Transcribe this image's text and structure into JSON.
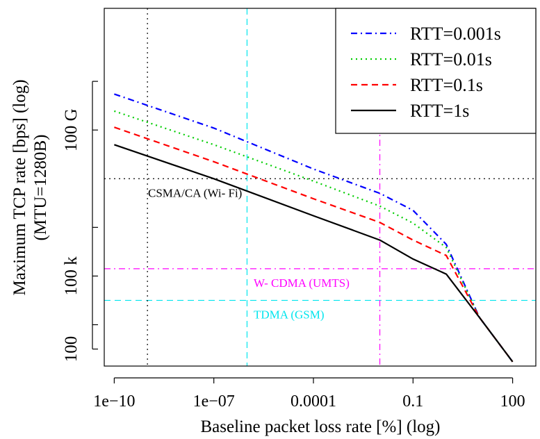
{
  "chart_data": {
    "type": "line",
    "xlabel": "Baseline packet loss rate [%] (log)",
    "ylabel_lines": [
      "Maximum TCP rate [bps] (log)",
      "(MTU=1280B)"
    ],
    "x_scale": "log10",
    "y_scale": "log10",
    "xlim": [
      5e-11,
      500
    ],
    "ylim": [
      20,
      1e+16
    ],
    "x_ticks": [
      {
        "value": 1e-10,
        "label": "1e−10"
      },
      {
        "value": 1e-07,
        "label": "1e−07"
      },
      {
        "value": 0.0001,
        "label": "0.0001"
      },
      {
        "value": 0.1,
        "label": "0.1"
      },
      {
        "value": 100,
        "label": "100"
      }
    ],
    "y_ticks": [
      {
        "value": 100,
        "label": "100"
      },
      {
        "value": 1000,
        "label": ""
      },
      {
        "value": 100000,
        "label": "100 k"
      },
      {
        "value": 10000000,
        "label": ""
      },
      {
        "value": 100000000000,
        "label": "100 G"
      },
      {
        "value": 10000000000000,
        "label": ""
      }
    ],
    "series": [
      {
        "name": "RTT=0.001s",
        "color": "#0000ff",
        "dash": "dashdot",
        "x": [
          1e-10,
          1e-07,
          0.0001,
          0.01,
          0.1,
          1,
          10,
          100
        ],
        "y": [
          3000000000000.0,
          120000000000.0,
          2500000000.0,
          250000000.0,
          50000000.0,
          2000000.0,
          2000,
          30
        ]
      },
      {
        "name": "RTT=0.01s",
        "color": "#00cd00",
        "dash": "dotted",
        "x": [
          1e-10,
          1e-07,
          0.0001,
          0.01,
          0.1,
          1,
          10,
          100
        ],
        "y": [
          600000000000.0,
          25000000000.0,
          800000000.0,
          75000000.0,
          15000000.0,
          1500000.0,
          2000,
          30
        ]
      },
      {
        "name": "RTT=0.1s",
        "color": "#ff0000",
        "dash": "dashed",
        "x": [
          1e-10,
          1e-07,
          0.0001,
          0.01,
          0.1,
          1,
          10,
          100
        ],
        "y": [
          130000000000.0,
          5000000000.0,
          150000000.0,
          16000000.0,
          3000000.0,
          700000.0,
          2000,
          30
        ]
      },
      {
        "name": "RTT=1s",
        "color": "#000000",
        "dash": "solid",
        "x": [
          1e-10,
          1e-07,
          0.0001,
          0.01,
          0.1,
          1,
          10,
          100
        ],
        "y": [
          25000000000.0,
          1000000000.0,
          30000000.0,
          3000000.0,
          500000.0,
          120000.0,
          2000,
          30
        ]
      }
    ],
    "reference_lines": [
      {
        "axis": "y",
        "value": 1000000000,
        "color": "#000000",
        "style": "dotted",
        "label": "CSMA/CA (Wi- Fi)"
      },
      {
        "axis": "y",
        "value": 200000,
        "color": "#ff00ff",
        "style": "dashdot",
        "label": "W- CDMA (UMTS)"
      },
      {
        "axis": "y",
        "value": 10000,
        "color": "#00e5ee",
        "style": "dashed",
        "label": "TDMA (GSM)"
      },
      {
        "axis": "x",
        "value": 1e-09,
        "color": "#000000",
        "style": "dotted"
      },
      {
        "axis": "x",
        "value": 1e-06,
        "color": "#00e5ee",
        "style": "dashed"
      },
      {
        "axis": "x",
        "value": 0.01,
        "color": "#ff00ff",
        "style": "dashdot"
      }
    ],
    "legend_position": "top-right",
    "grid": false
  }
}
